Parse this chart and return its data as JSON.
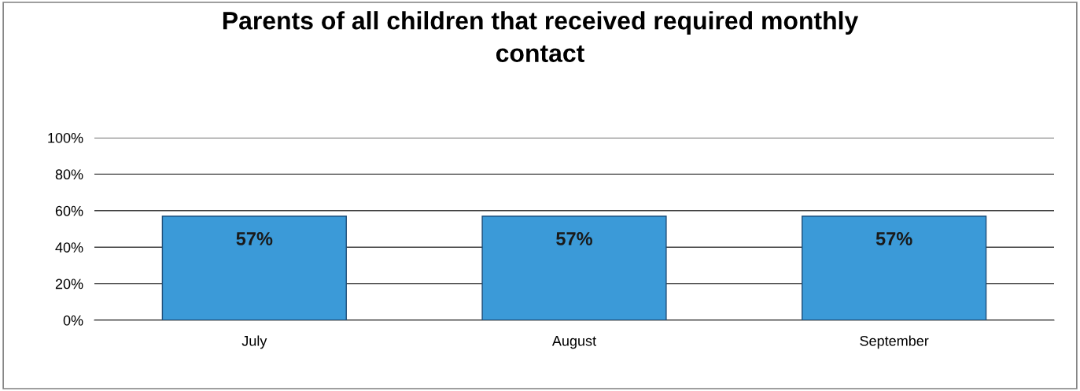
{
  "chart_data": {
    "type": "bar",
    "title": "Parents of all children that received required monthly\ncontact",
    "categories": [
      "July",
      "August",
      "September"
    ],
    "values": [
      57,
      57,
      57
    ],
    "value_labels": [
      "57%",
      "57%",
      "57%"
    ],
    "color": "#3b9ad8",
    "ylim": [
      0,
      100
    ],
    "yticks": [
      {
        "value": 0,
        "label": "0%"
      },
      {
        "value": 20,
        "label": "20%"
      },
      {
        "value": 40,
        "label": "40%"
      },
      {
        "value": 60,
        "label": "60%"
      },
      {
        "value": 80,
        "label": "80%"
      },
      {
        "value": 100,
        "label": "100%"
      }
    ],
    "grid": "y"
  }
}
